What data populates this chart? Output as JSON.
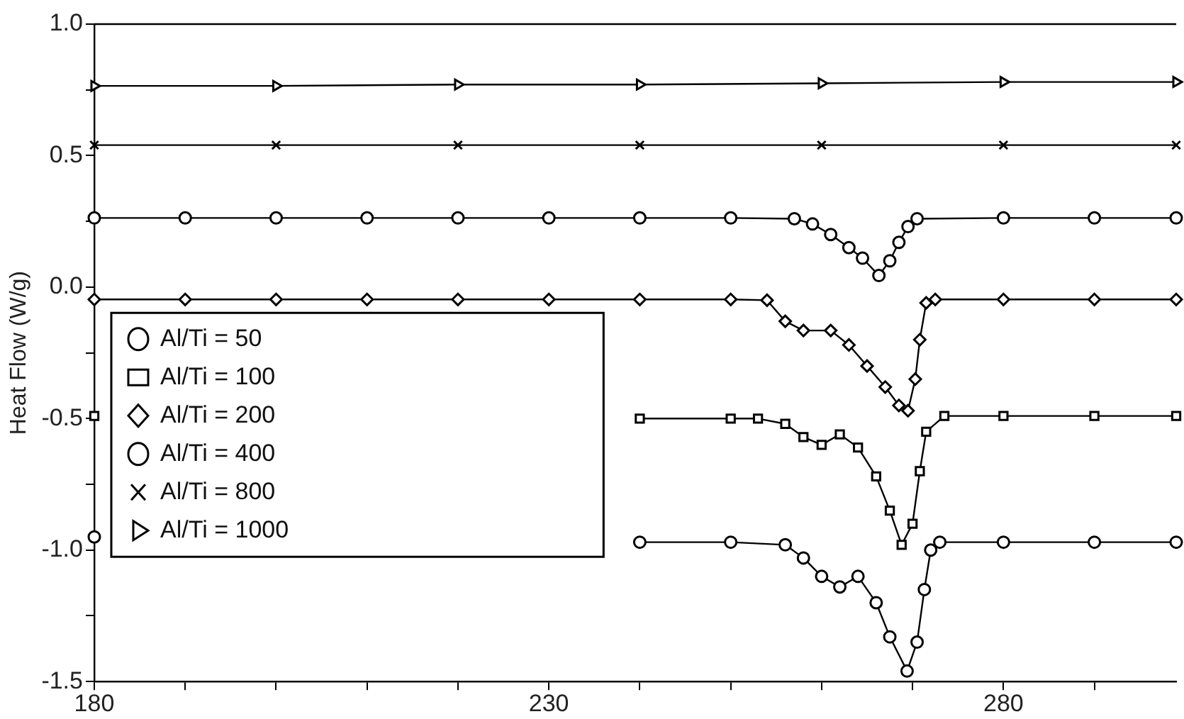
{
  "chart_data": {
    "type": "line",
    "ylabel": "Heat Flow (W/g)",
    "xlim": [
      180,
      299
    ],
    "ylim": [
      -1.5,
      1.0
    ],
    "xticks": [
      180,
      {
        "value": 190,
        "label": null
      },
      {
        "value": 200,
        "label": null
      },
      {
        "value": 210,
        "label": null
      },
      {
        "value": 220,
        "label": null
      },
      230,
      {
        "value": 240,
        "label": null
      },
      {
        "value": 250,
        "label": null
      },
      {
        "value": 260,
        "label": null
      },
      {
        "value": 270,
        "label": null
      },
      280,
      {
        "value": 290,
        "label": null
      }
    ],
    "yticks": [
      {
        "value": -1.5,
        "label": "-1.5"
      },
      {
        "value": -1.25,
        "label": null
      },
      {
        "value": -1,
        "label": "-1.0"
      },
      {
        "value": -0.75,
        "label": null
      },
      {
        "value": -0.5,
        "label": "-0.5"
      },
      {
        "value": -0.25,
        "label": null
      },
      {
        "value": 0,
        "label": "0.0"
      },
      {
        "value": 0.25,
        "label": null
      },
      {
        "value": 0.5,
        "label": "0.5"
      },
      {
        "value": 0.75,
        "label": null
      },
      {
        "value": 1,
        "label": "1.0"
      }
    ],
    "grid": false,
    "legend": "bottom left",
    "series": [
      {
        "name": "Al/Ti = 50",
        "color": "#000000",
        "marker": "circle",
        "x": [
          180,
          190,
          200,
          210,
          220,
          230,
          240,
          250,
          256,
          258,
          260,
          262,
          264,
          266,
          267.5,
          269.4,
          270.5,
          271.3,
          272,
          273,
          280,
          290,
          299
        ],
        "values": [
          -0.95,
          null,
          null,
          null,
          null,
          null,
          -0.97,
          -0.97,
          -0.98,
          -1.03,
          -1.1,
          -1.14,
          -1.1,
          -1.2,
          -1.33,
          -1.46,
          -1.35,
          -1.15,
          -1.0,
          -0.97,
          -0.97,
          -0.97,
          -0.97
        ]
      },
      {
        "name": "Al/Ti = 100",
        "color": "#000000",
        "marker": "square",
        "x": [
          180,
          190,
          200,
          210,
          220,
          230,
          240,
          250,
          253,
          256,
          258,
          260,
          262,
          264,
          266,
          267.5,
          268.8,
          270,
          270.8,
          271.5,
          273.5,
          280,
          290,
          299
        ],
        "values": [
          -0.49,
          null,
          null,
          null,
          null,
          null,
          -0.5,
          -0.5,
          -0.5,
          -0.52,
          -0.57,
          -0.6,
          -0.56,
          -0.61,
          -0.72,
          -0.85,
          -0.98,
          -0.9,
          -0.7,
          -0.55,
          -0.49,
          -0.49,
          -0.49,
          -0.49
        ]
      },
      {
        "name": "Al/Ti = 200",
        "color": "#000000",
        "marker": "diamond",
        "x": [
          180,
          190,
          200,
          210,
          220,
          230,
          240,
          250,
          254,
          256,
          258,
          261,
          263,
          265,
          267,
          268.5,
          269.5,
          270.3,
          270.8,
          271.5,
          272.5,
          280,
          290,
          299
        ],
        "values": [
          -0.047,
          -0.047,
          -0.047,
          -0.047,
          -0.047,
          -0.047,
          -0.047,
          -0.047,
          -0.05,
          -0.13,
          -0.165,
          -0.165,
          -0.22,
          -0.3,
          -0.38,
          -0.45,
          -0.47,
          -0.35,
          -0.2,
          -0.06,
          -0.047,
          -0.047,
          -0.047,
          -0.047
        ]
      },
      {
        "name": "Al/Ti = 400",
        "color": "#000000",
        "marker": "circle",
        "x": [
          180,
          190,
          200,
          210,
          220,
          230,
          240,
          250,
          257,
          259,
          261,
          263,
          264.5,
          266.3,
          267.5,
          268.5,
          269.5,
          270.5,
          280,
          290,
          299
        ],
        "values": [
          0.263,
          0.263,
          0.263,
          0.263,
          0.263,
          0.263,
          0.263,
          0.263,
          0.26,
          0.24,
          0.2,
          0.15,
          0.11,
          0.044,
          0.1,
          0.17,
          0.23,
          0.26,
          0.263,
          0.263,
          0.263
        ]
      },
      {
        "name": "Al/Ti = 800",
        "color": "#000000",
        "marker": "cross",
        "x": [
          180,
          200,
          220,
          240,
          260,
          280,
          299
        ],
        "values": [
          0.54,
          0.54,
          0.54,
          0.54,
          0.54,
          0.54,
          0.54
        ]
      },
      {
        "name": "Al/Ti = 1000",
        "color": "#000000",
        "marker": "triangle",
        "x": [
          180,
          200,
          220,
          240,
          260,
          280,
          299
        ],
        "values": [
          0.765,
          0.765,
          0.77,
          0.77,
          0.775,
          0.78,
          0.78
        ]
      }
    ]
  }
}
